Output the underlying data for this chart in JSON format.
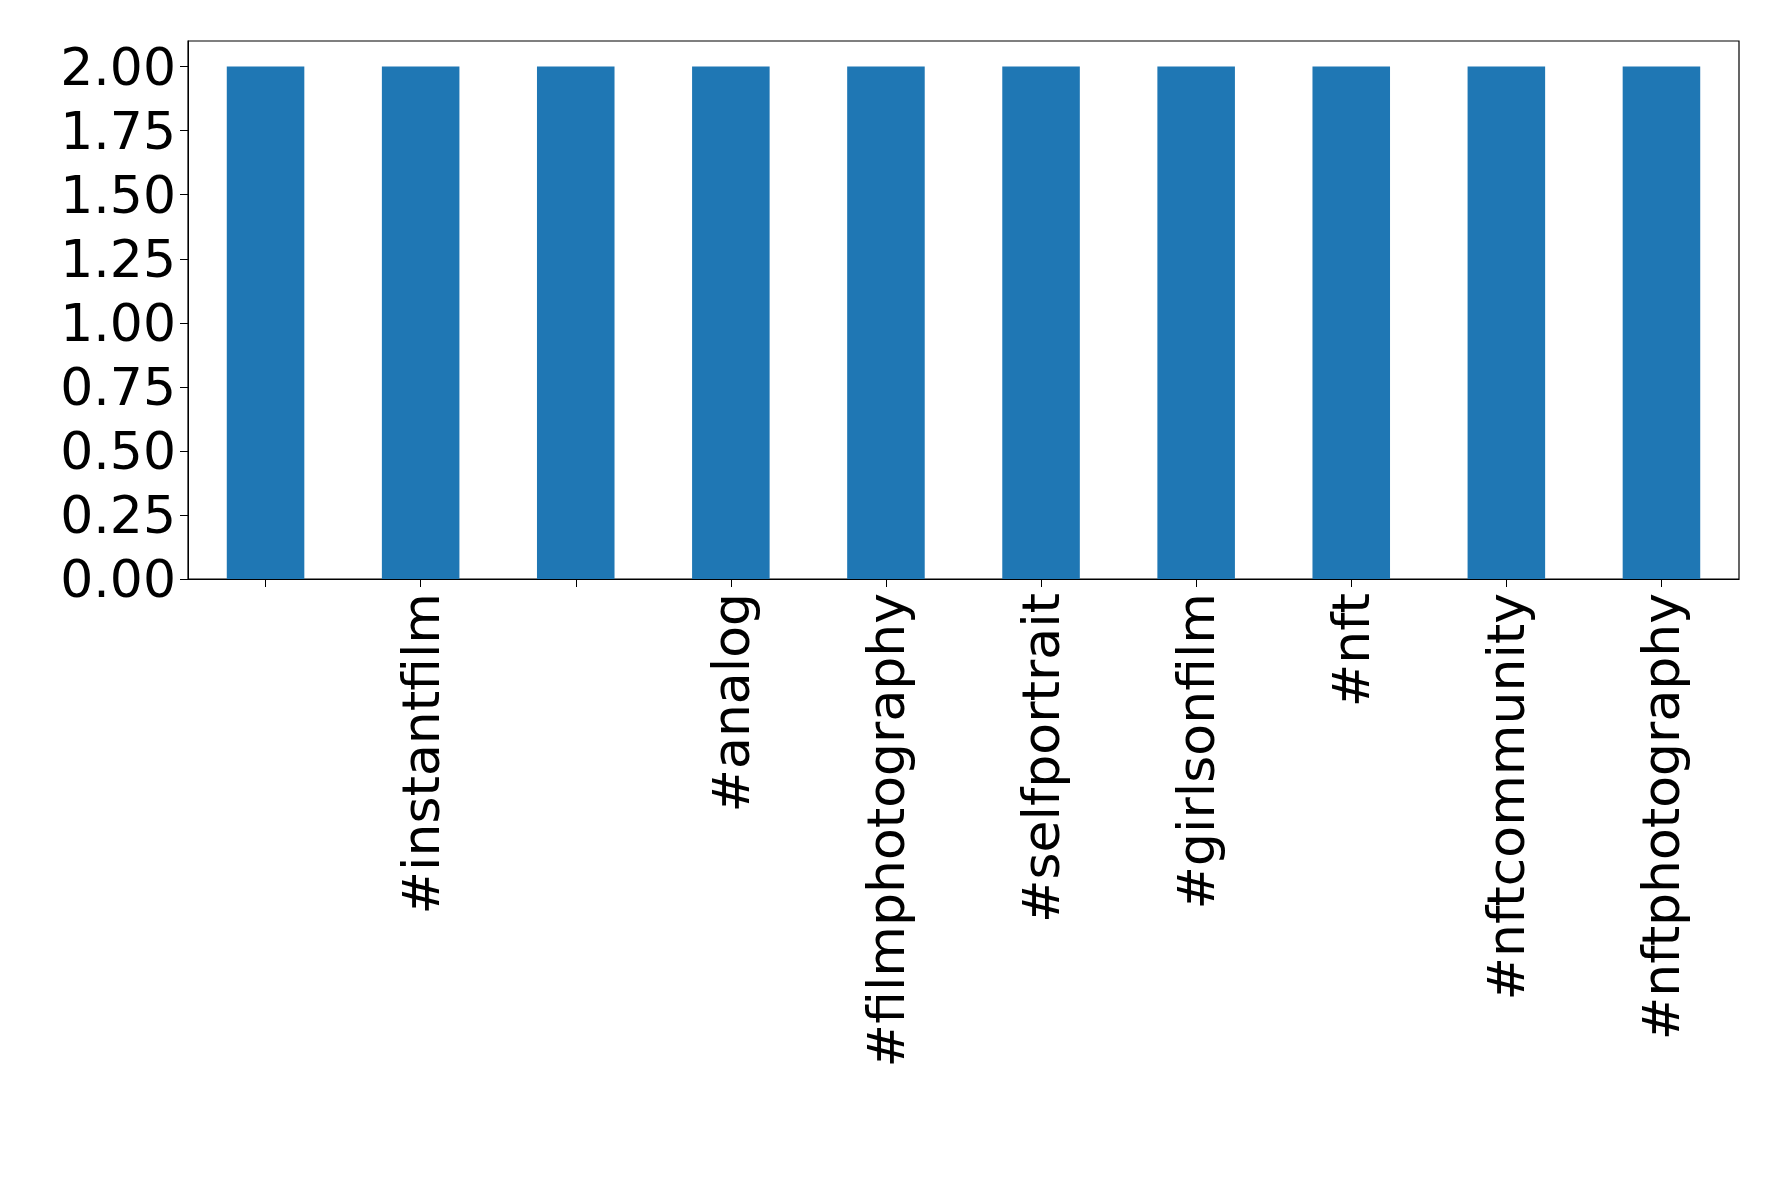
{
  "chart_data": {
    "type": "bar",
    "categories": [
      null,
      "#instantfilm",
      null,
      "#analog",
      "#filmphotography",
      "#selfportrait",
      "#girlsonfilm",
      "#nft",
      "#nftcommunity",
      "#nftphotography"
    ],
    "values": [
      2,
      2,
      2,
      2,
      2,
      2,
      2,
      2,
      2,
      2
    ],
    "color": "#1f77b4",
    "ylim": [
      0,
      2.1
    ],
    "yticks": [
      {
        "value": 0,
        "label": "0.00"
      },
      {
        "value": 0.25,
        "label": "0.25"
      },
      {
        "value": 0.5,
        "label": "0.50"
      },
      {
        "value": 0.75,
        "label": "0.75"
      },
      {
        "value": 1,
        "label": "1.00"
      },
      {
        "value": 1.25,
        "label": "1.25"
      },
      {
        "value": 1.5,
        "label": "1.50"
      },
      {
        "value": 1.75,
        "label": "1.75"
      },
      {
        "value": 2,
        "label": "2.00"
      }
    ],
    "grid": false
  }
}
